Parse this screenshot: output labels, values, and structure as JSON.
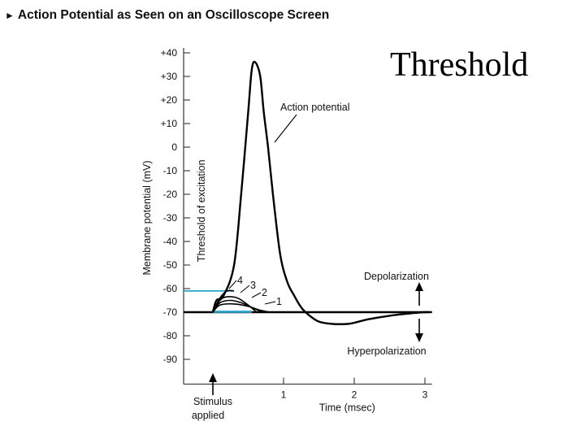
{
  "header": {
    "title": "Action Potential as Seen on an Oscilloscope Screen"
  },
  "overlay": {
    "text": "Threshold"
  },
  "chart_data": {
    "type": "line",
    "title": "Action Potential as Seen on an Oscilloscope Screen",
    "xlabel": "Time (msec)",
    "ylabel": "Membrane potential (mV)",
    "xlim": [
      -0.4,
      3.1
    ],
    "ylim": [
      -95,
      40
    ],
    "y_ticks": [
      {
        "value": 40,
        "label": "+40"
      },
      {
        "value": 30,
        "label": "+30"
      },
      {
        "value": 20,
        "label": "+20"
      },
      {
        "value": 10,
        "label": "+10"
      },
      {
        "value": 0,
        "label": "0"
      },
      {
        "value": -10,
        "label": "-10"
      },
      {
        "value": -20,
        "label": "-20"
      },
      {
        "value": -30,
        "label": "-30"
      },
      {
        "value": -40,
        "label": "-40"
      },
      {
        "value": -50,
        "label": "-50"
      },
      {
        "value": -60,
        "label": "-60"
      },
      {
        "value": -70,
        "label": "-70"
      },
      {
        "value": -80,
        "label": "-80"
      },
      {
        "value": -90,
        "label": "-90"
      }
    ],
    "x_ticks": [
      {
        "value": 1,
        "label": "1"
      },
      {
        "value": 2,
        "label": "2"
      },
      {
        "value": 3,
        "label": "3"
      }
    ],
    "resting_potential": -70,
    "threshold_potential": -61,
    "stimulus_time": 0,
    "series": [
      {
        "name": "Action potential",
        "x": [
          0,
          0.05,
          0.15,
          0.3,
          0.4,
          0.5,
          0.55,
          0.6,
          0.67,
          0.72,
          0.78,
          0.85,
          0.95,
          1.05,
          1.15,
          1.25,
          1.35,
          1.5,
          1.7,
          1.9,
          2.0,
          2.2,
          2.5,
          2.8,
          3.0,
          3.1
        ],
        "y": [
          -70,
          -65,
          -63,
          -50,
          -20,
          15,
          33,
          36,
          30,
          15,
          0,
          -20,
          -45,
          -57,
          -63,
          -68,
          -71,
          -74,
          -75,
          -75,
          -74.5,
          -73,
          -71.5,
          -70.5,
          -70,
          -70
        ]
      },
      {
        "name": "4",
        "x": [
          0,
          0.1,
          0.2,
          0.3
        ],
        "y": [
          -70,
          -64,
          -61,
          -61
        ],
        "label": "4"
      },
      {
        "name": "3",
        "x": [
          0,
          0.1,
          0.2,
          0.35,
          0.5,
          0.62
        ],
        "y": [
          -70,
          -65,
          -63.5,
          -64,
          -67,
          -70
        ],
        "label": "3"
      },
      {
        "name": "2",
        "x": [
          0,
          0.1,
          0.25,
          0.4,
          0.55,
          0.7
        ],
        "y": [
          -70,
          -66,
          -65,
          -66,
          -68,
          -70
        ],
        "label": "2"
      },
      {
        "name": "1",
        "x": [
          0,
          0.1,
          0.3,
          0.5,
          0.65,
          0.8
        ],
        "y": [
          -70,
          -67,
          -66.5,
          -67.5,
          -69,
          -70
        ],
        "label": "1"
      }
    ],
    "annotations": [
      {
        "text": "Action potential"
      },
      {
        "text": "Threshold of excitation"
      },
      {
        "text": "Depolarization"
      },
      {
        "text": "Hyperpolarization"
      },
      {
        "text": "Stimulus"
      },
      {
        "text": "applied"
      }
    ]
  }
}
